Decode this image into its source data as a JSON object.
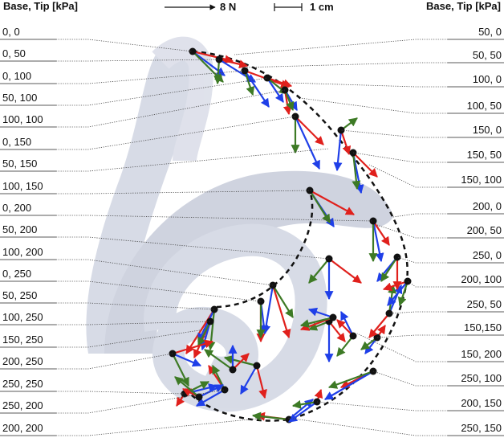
{
  "header": {
    "left_title": "Base, Tip [kPa]",
    "right_title": "Base, Tip [kPa]",
    "force_scale": "8 N",
    "length_scale": "1 cm"
  },
  "left_labels": [
    "0, 0",
    "0, 50",
    "0, 100",
    "50, 100",
    "100, 100",
    "0, 150",
    "50, 150",
    "100, 150",
    "0, 200",
    "50, 200",
    "100, 200",
    "0, 250",
    "50, 250",
    "100, 250",
    "150, 250",
    "200, 250",
    "250, 250",
    "250, 200",
    "200, 200"
  ],
  "right_labels": [
    "50, 0",
    "50, 50",
    "100, 0",
    "100, 50",
    "150, 0",
    "150, 50",
    "150, 100",
    "200, 0",
    "200, 50",
    "250, 0",
    "200, 100",
    "250, 50",
    "150,150",
    "150, 200",
    "250, 100",
    "200, 150",
    "250, 150"
  ]
}
